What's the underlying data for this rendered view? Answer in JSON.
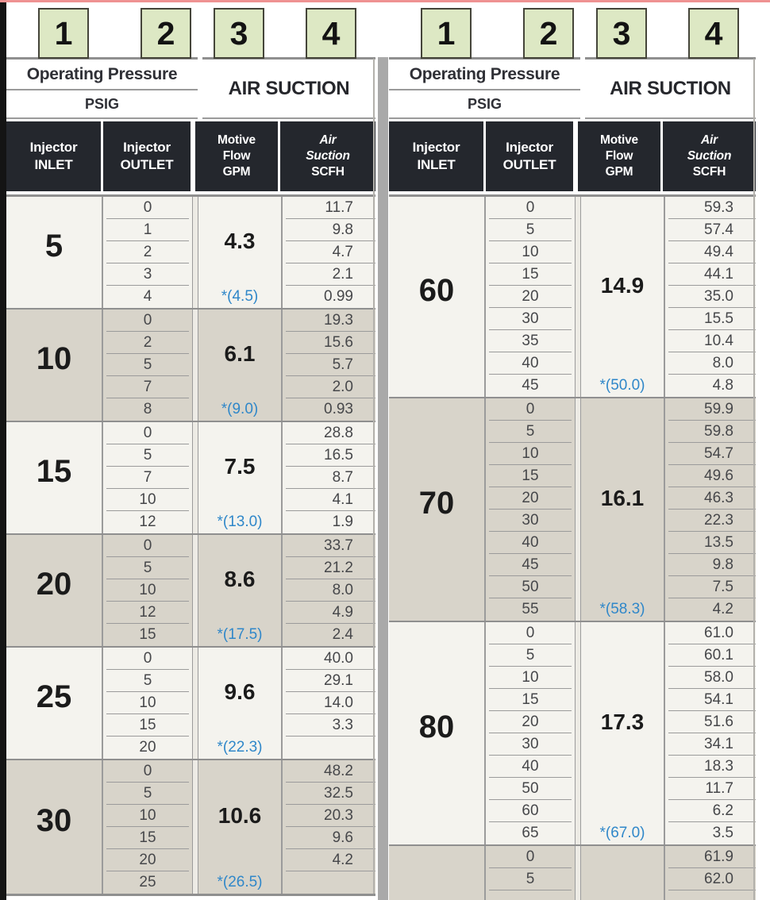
{
  "document": {
    "column_markers": [
      "1",
      "2",
      "3",
      "4"
    ],
    "colors": {
      "marker_bg": "#dde8c4",
      "marker_border": "#45453a",
      "dark_header_bg": "#24272d",
      "section_light_bg": "#f4f3ee",
      "section_dark_bg": "#d8d4ca",
      "annotation_blue": "#2f87c9",
      "top_strip": "#ef9292",
      "divider_gray": "#a9a9a9",
      "grid_line": "#9b9b9b"
    }
  },
  "header": {
    "pressure_group_title": "Operating Pressure",
    "pressure_group_units": "PSIG",
    "suction_group_title": "AIR SUCTION",
    "inlet_col": {
      "line1": "Injector",
      "line2": "INLET"
    },
    "outlet_col": {
      "line1": "Injector",
      "line2": "OUTLET"
    },
    "motive_col": {
      "line1": "Motive",
      "line2": "Flow",
      "line3": "GPM"
    },
    "suction_col": {
      "line1": "Air",
      "line2": "Suction",
      "line3": "SCFH"
    }
  },
  "tables": [
    {
      "side": "left",
      "sections": [
        {
          "inlet_psig": "5",
          "motive_flow_gpm": "4.3",
          "max_outlet_note": "*(4.5)",
          "rows": [
            {
              "outlet": "0",
              "scfh": "11.7"
            },
            {
              "outlet": "1",
              "scfh": "9.8"
            },
            {
              "outlet": "2",
              "scfh": "4.7"
            },
            {
              "outlet": "3",
              "scfh": "2.1"
            },
            {
              "outlet": "4",
              "scfh": "0.99"
            }
          ]
        },
        {
          "inlet_psig": "10",
          "motive_flow_gpm": "6.1",
          "max_outlet_note": "*(9.0)",
          "rows": [
            {
              "outlet": "0",
              "scfh": "19.3"
            },
            {
              "outlet": "2",
              "scfh": "15.6"
            },
            {
              "outlet": "5",
              "scfh": "5.7"
            },
            {
              "outlet": "7",
              "scfh": "2.0"
            },
            {
              "outlet": "8",
              "scfh": "0.93"
            }
          ]
        },
        {
          "inlet_psig": "15",
          "motive_flow_gpm": "7.5",
          "max_outlet_note": "*(13.0)",
          "rows": [
            {
              "outlet": "0",
              "scfh": "28.8"
            },
            {
              "outlet": "5",
              "scfh": "16.5"
            },
            {
              "outlet": "7",
              "scfh": "8.7"
            },
            {
              "outlet": "10",
              "scfh": "4.1"
            },
            {
              "outlet": "12",
              "scfh": "1.9"
            }
          ]
        },
        {
          "inlet_psig": "20",
          "motive_flow_gpm": "8.6",
          "max_outlet_note": "*(17.5)",
          "rows": [
            {
              "outlet": "0",
              "scfh": "33.7"
            },
            {
              "outlet": "5",
              "scfh": "21.2"
            },
            {
              "outlet": "10",
              "scfh": "8.0"
            },
            {
              "outlet": "12",
              "scfh": "4.9"
            },
            {
              "outlet": "15",
              "scfh": "2.4"
            }
          ]
        },
        {
          "inlet_psig": "25",
          "motive_flow_gpm": "9.6",
          "max_outlet_note": "*(22.3)",
          "rows": [
            {
              "outlet": "0",
              "scfh": "40.0"
            },
            {
              "outlet": "5",
              "scfh": "29.1"
            },
            {
              "outlet": "10",
              "scfh": "14.0"
            },
            {
              "outlet": "15",
              "scfh": "3.3"
            },
            {
              "outlet": "20",
              "scfh": ""
            }
          ]
        },
        {
          "inlet_psig": "30",
          "motive_flow_gpm": "10.6",
          "max_outlet_note": "*(26.5)",
          "rows": [
            {
              "outlet": "0",
              "scfh": "48.2"
            },
            {
              "outlet": "5",
              "scfh": "32.5"
            },
            {
              "outlet": "10",
              "scfh": "20.3"
            },
            {
              "outlet": "15",
              "scfh": "9.6"
            },
            {
              "outlet": "20",
              "scfh": "4.2"
            },
            {
              "outlet": "25",
              "scfh": ""
            }
          ]
        }
      ]
    },
    {
      "side": "right",
      "sections": [
        {
          "inlet_psig": "60",
          "motive_flow_gpm": "14.9",
          "max_outlet_note": "*(50.0)",
          "rows": [
            {
              "outlet": "0",
              "scfh": "59.3"
            },
            {
              "outlet": "5",
              "scfh": "57.4"
            },
            {
              "outlet": "10",
              "scfh": "49.4"
            },
            {
              "outlet": "15",
              "scfh": "44.1"
            },
            {
              "outlet": "20",
              "scfh": "35.0"
            },
            {
              "outlet": "30",
              "scfh": "15.5"
            },
            {
              "outlet": "35",
              "scfh": "10.4"
            },
            {
              "outlet": "40",
              "scfh": "8.0"
            },
            {
              "outlet": "45",
              "scfh": "4.8"
            }
          ]
        },
        {
          "inlet_psig": "70",
          "motive_flow_gpm": "16.1",
          "max_outlet_note": "*(58.3)",
          "rows": [
            {
              "outlet": "0",
              "scfh": "59.9"
            },
            {
              "outlet": "5",
              "scfh": "59.8"
            },
            {
              "outlet": "10",
              "scfh": "54.7"
            },
            {
              "outlet": "15",
              "scfh": "49.6"
            },
            {
              "outlet": "20",
              "scfh": "46.3"
            },
            {
              "outlet": "30",
              "scfh": "22.3"
            },
            {
              "outlet": "40",
              "scfh": "13.5"
            },
            {
              "outlet": "45",
              "scfh": "9.8"
            },
            {
              "outlet": "50",
              "scfh": "7.5"
            },
            {
              "outlet": "55",
              "scfh": "4.2"
            }
          ]
        },
        {
          "inlet_psig": "80",
          "motive_flow_gpm": "17.3",
          "max_outlet_note": "*(67.0)",
          "rows": [
            {
              "outlet": "0",
              "scfh": "61.0"
            },
            {
              "outlet": "5",
              "scfh": "60.1"
            },
            {
              "outlet": "10",
              "scfh": "58.0"
            },
            {
              "outlet": "15",
              "scfh": "54.1"
            },
            {
              "outlet": "20",
              "scfh": "51.6"
            },
            {
              "outlet": "30",
              "scfh": "34.1"
            },
            {
              "outlet": "40",
              "scfh": "18.3"
            },
            {
              "outlet": "50",
              "scfh": "11.7"
            },
            {
              "outlet": "60",
              "scfh": "6.2"
            },
            {
              "outlet": "65",
              "scfh": "3.5"
            }
          ]
        },
        {
          "inlet_psig": "",
          "motive_flow_gpm": "",
          "max_outlet_note": "",
          "partial": true,
          "rows": [
            {
              "outlet": "0",
              "scfh": "61.9"
            },
            {
              "outlet": "5",
              "scfh": "62.0"
            }
          ]
        }
      ]
    }
  ]
}
